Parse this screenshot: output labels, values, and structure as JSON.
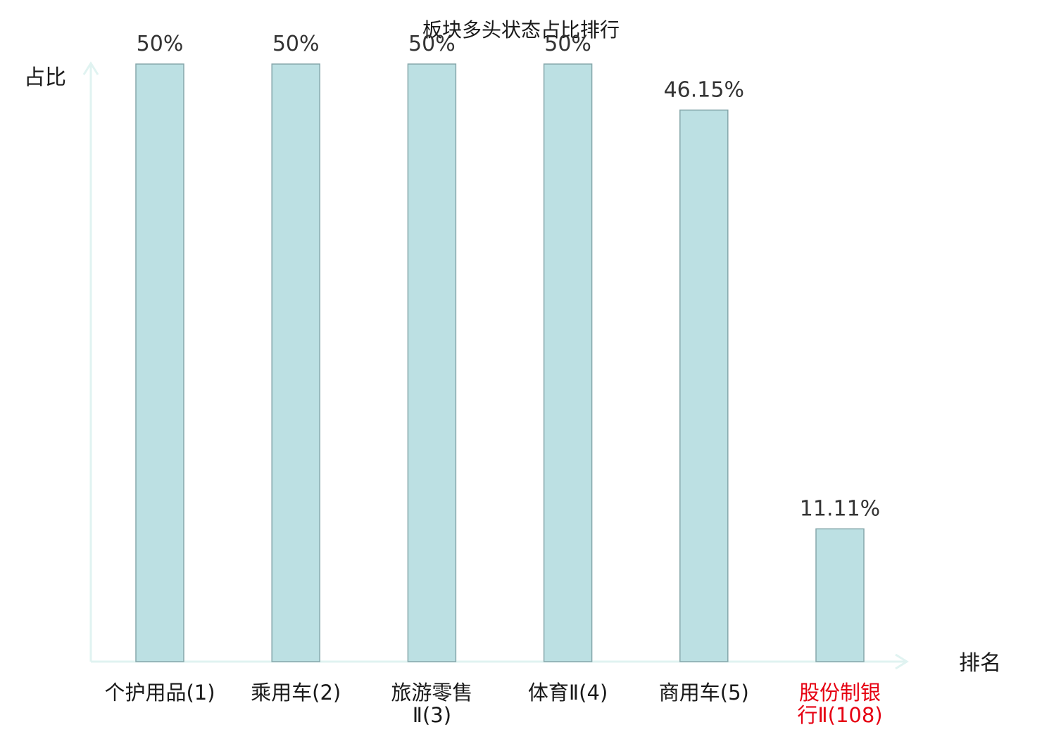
{
  "chart_data": {
    "type": "bar",
    "title": "板块多头状态占比排行",
    "xlabel": "排名",
    "ylabel": "占比",
    "ylim": [
      0,
      50
    ],
    "grid": false,
    "categories": [
      [
        "个护用品(1)"
      ],
      [
        "乘用车(2)"
      ],
      [
        "旅游零售",
        "Ⅱ(3)"
      ],
      [
        "体育Ⅱ(4)"
      ],
      [
        "商用车(5)"
      ],
      [
        "股份制银",
        "行Ⅱ(108)"
      ]
    ],
    "values": [
      50,
      50,
      50,
      50,
      46.15,
      11.11
    ],
    "value_labels": [
      "50%",
      "50%",
      "50%",
      "50%",
      "46.15%",
      "11.11%"
    ],
    "highlight_index": 5,
    "colors": {
      "bar_fill": "#bce0e3",
      "bar_stroke": "#86a7ab",
      "axis": "#e0f3f1",
      "label_default": "#1a1a1a",
      "label_highlight": "#e60012"
    }
  }
}
